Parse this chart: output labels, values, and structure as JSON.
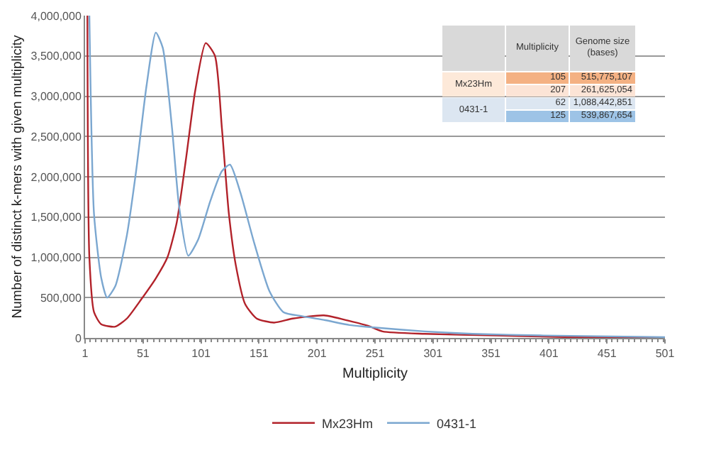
{
  "chart_data": {
    "type": "line",
    "xlabel": "Multiplicity",
    "ylabel": "Number of distinct k-mers with given multiplicity",
    "xlim": [
      1,
      501
    ],
    "xticks": [
      1,
      51,
      101,
      151,
      201,
      251,
      301,
      351,
      401,
      451,
      501
    ],
    "ylim": [
      0,
      4000000
    ],
    "yticks": [
      0,
      {
        "value": 500000,
        "label": "500,000"
      },
      {
        "value": 1000000,
        "label": "1,000,000"
      },
      {
        "value": 1500000,
        "label": "1,500,000"
      },
      {
        "value": 2000000,
        "label": "2,000,000"
      },
      {
        "value": 2500000,
        "label": "2,500,000"
      },
      {
        "value": 3000000,
        "label": "3,000,000"
      },
      {
        "value": 3500000,
        "label": "3,500,000"
      },
      {
        "value": 4000000,
        "label": "4,000,000"
      }
    ],
    "grid": "y",
    "legend": "bottom",
    "marker": "none",
    "line_style": "solid",
    "series": [
      {
        "name": "Mx23Hm",
        "color": "#b2222a",
        "x": [
          3,
          4.7,
          8.7,
          14.9,
          27,
          37,
          49.5,
          62,
          72,
          80,
          88,
          96,
          105,
          113,
          119,
          125,
          131,
          139,
          149,
          164,
          180,
          207,
          229,
          245,
          257.5,
          294,
          355,
          416,
          501
        ],
        "values": [
          4000000,
          1000000,
          320000,
          170000,
          140000,
          240000,
          480000,
          740000,
          1000000,
          1430000,
          2220000,
          3070000,
          3660000,
          3500000,
          2600000,
          1540000,
          900000,
          420000,
          240000,
          190000,
          240000,
          280000,
          210000,
          150000,
          80000,
          50000,
          30000,
          10000,
          0
        ]
      },
      {
        "name": "0431-1",
        "color": "#7ba7d0",
        "x": [
          4.7,
          8.7,
          15,
          20,
          27,
          37,
          45,
          54,
          62,
          68,
          76,
          82,
          90,
          98.5,
          109,
          119,
          126,
          135,
          147,
          160,
          172,
          188,
          208,
          229,
          250,
          294,
          335,
          396,
          501
        ],
        "values": [
          4000000,
          1540000,
          740000,
          500000,
          640000,
          1270000,
          2070000,
          3130000,
          3790000,
          3600000,
          2600000,
          1640000,
          1020000,
          1220000,
          1700000,
          2070000,
          2150000,
          1800000,
          1170000,
          580000,
          320000,
          270000,
          220000,
          160000,
          130000,
          80000,
          50000,
          30000,
          10000
        ]
      }
    ],
    "annotations": [
      "Multiplicity",
      "Genome size (bases)",
      "Mx23Hm",
      "105",
      "515,775,107",
      "207",
      "261,625,054",
      "0431-1",
      "62",
      "1,088,442,851",
      "125",
      "539,867,654"
    ]
  }
}
